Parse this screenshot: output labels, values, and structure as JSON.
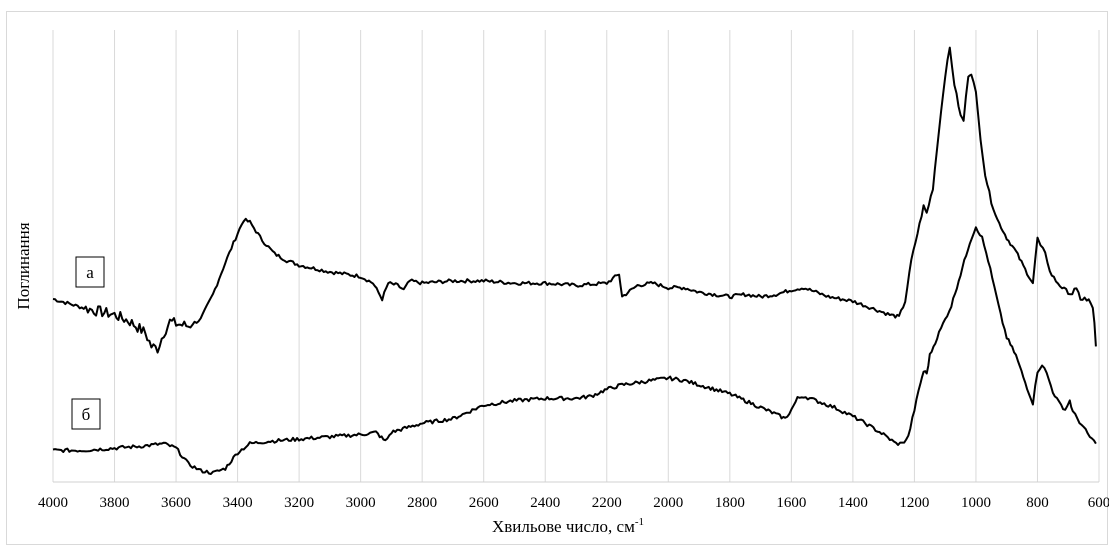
{
  "chart_data": {
    "type": "line",
    "title": "",
    "xlabel_main": "Хвильове число, см",
    "xlabel_sup": "-1",
    "ylabel": "Поглинання",
    "xlim": [
      4000,
      600
    ],
    "x_reversed": true,
    "ylim": [
      0,
      1
    ],
    "x_ticks": [
      4000,
      3800,
      3600,
      3400,
      3200,
      3000,
      2800,
      2600,
      2400,
      2200,
      2000,
      1800,
      1600,
      1400,
      1200,
      1000,
      800,
      600
    ],
    "y_ticks_shown": false,
    "grid": "vertical",
    "series": [
      {
        "name": "а",
        "points": [
          [
            4000,
            0.405
          ],
          [
            3900,
            0.385
          ],
          [
            3800,
            0.37
          ],
          [
            3750,
            0.355
          ],
          [
            3700,
            0.33
          ],
          [
            3680,
            0.3
          ],
          [
            3660,
            0.295
          ],
          [
            3640,
            0.33
          ],
          [
            3620,
            0.355
          ],
          [
            3600,
            0.35
          ],
          [
            3560,
            0.345
          ],
          [
            3520,
            0.36
          ],
          [
            3480,
            0.415
          ],
          [
            3440,
            0.485
          ],
          [
            3400,
            0.55
          ],
          [
            3380,
            0.58
          ],
          [
            3360,
            0.575
          ],
          [
            3320,
            0.535
          ],
          [
            3280,
            0.505
          ],
          [
            3240,
            0.49
          ],
          [
            3200,
            0.48
          ],
          [
            3100,
            0.465
          ],
          [
            3000,
            0.455
          ],
          [
            2960,
            0.44
          ],
          [
            2930,
            0.405
          ],
          [
            2910,
            0.44
          ],
          [
            2880,
            0.435
          ],
          [
            2860,
            0.425
          ],
          [
            2840,
            0.445
          ],
          [
            2800,
            0.44
          ],
          [
            2700,
            0.445
          ],
          [
            2600,
            0.445
          ],
          [
            2500,
            0.44
          ],
          [
            2400,
            0.44
          ],
          [
            2300,
            0.435
          ],
          [
            2200,
            0.44
          ],
          [
            2160,
            0.46
          ],
          [
            2150,
            0.41
          ],
          [
            2100,
            0.435
          ],
          [
            2050,
            0.44
          ],
          [
            2000,
            0.43
          ],
          [
            1950,
            0.43
          ],
          [
            1900,
            0.42
          ],
          [
            1850,
            0.415
          ],
          [
            1800,
            0.41
          ],
          [
            1750,
            0.415
          ],
          [
            1700,
            0.41
          ],
          [
            1650,
            0.415
          ],
          [
            1600,
            0.425
          ],
          [
            1560,
            0.43
          ],
          [
            1520,
            0.42
          ],
          [
            1480,
            0.41
          ],
          [
            1440,
            0.405
          ],
          [
            1400,
            0.4
          ],
          [
            1360,
            0.39
          ],
          [
            1320,
            0.38
          ],
          [
            1280,
            0.37
          ],
          [
            1250,
            0.365
          ],
          [
            1230,
            0.4
          ],
          [
            1210,
            0.49
          ],
          [
            1190,
            0.55
          ],
          [
            1170,
            0.61
          ],
          [
            1160,
            0.595
          ],
          [
            1140,
            0.65
          ],
          [
            1120,
            0.78
          ],
          [
            1100,
            0.9
          ],
          [
            1085,
            0.96
          ],
          [
            1070,
            0.88
          ],
          [
            1050,
            0.81
          ],
          [
            1040,
            0.8
          ],
          [
            1025,
            0.9
          ],
          [
            1015,
            0.905
          ],
          [
            1000,
            0.86
          ],
          [
            985,
            0.76
          ],
          [
            970,
            0.68
          ],
          [
            950,
            0.62
          ],
          [
            930,
            0.58
          ],
          [
            900,
            0.54
          ],
          [
            870,
            0.51
          ],
          [
            840,
            0.47
          ],
          [
            815,
            0.44
          ],
          [
            800,
            0.54
          ],
          [
            790,
            0.52
          ],
          [
            775,
            0.51
          ],
          [
            760,
            0.465
          ],
          [
            740,
            0.445
          ],
          [
            720,
            0.43
          ],
          [
            700,
            0.42
          ],
          [
            680,
            0.42
          ],
          [
            660,
            0.41
          ],
          [
            640,
            0.4
          ],
          [
            620,
            0.39
          ],
          [
            610,
            0.3
          ]
        ]
      },
      {
        "name": "б",
        "points": [
          [
            4000,
            0.07
          ],
          [
            3900,
            0.07
          ],
          [
            3800,
            0.075
          ],
          [
            3700,
            0.08
          ],
          [
            3640,
            0.085
          ],
          [
            3600,
            0.075
          ],
          [
            3560,
            0.04
          ],
          [
            3520,
            0.025
          ],
          [
            3480,
            0.02
          ],
          [
            3440,
            0.03
          ],
          [
            3400,
            0.065
          ],
          [
            3360,
            0.085
          ],
          [
            3300,
            0.09
          ],
          [
            3200,
            0.095
          ],
          [
            3100,
            0.1
          ],
          [
            3000,
            0.105
          ],
          [
            2950,
            0.11
          ],
          [
            2920,
            0.09
          ],
          [
            2900,
            0.11
          ],
          [
            2850,
            0.12
          ],
          [
            2800,
            0.13
          ],
          [
            2700,
            0.14
          ],
          [
            2650,
            0.155
          ],
          [
            2600,
            0.17
          ],
          [
            2500,
            0.18
          ],
          [
            2400,
            0.185
          ],
          [
            2300,
            0.185
          ],
          [
            2250,
            0.19
          ],
          [
            2200,
            0.205
          ],
          [
            2150,
            0.215
          ],
          [
            2100,
            0.22
          ],
          [
            2050,
            0.225
          ],
          [
            2000,
            0.23
          ],
          [
            1950,
            0.225
          ],
          [
            1900,
            0.215
          ],
          [
            1850,
            0.205
          ],
          [
            1800,
            0.195
          ],
          [
            1750,
            0.18
          ],
          [
            1700,
            0.165
          ],
          [
            1650,
            0.15
          ],
          [
            1620,
            0.14
          ],
          [
            1600,
            0.16
          ],
          [
            1580,
            0.185
          ],
          [
            1560,
            0.19
          ],
          [
            1520,
            0.18
          ],
          [
            1460,
            0.165
          ],
          [
            1400,
            0.145
          ],
          [
            1360,
            0.13
          ],
          [
            1300,
            0.105
          ],
          [
            1260,
            0.085
          ],
          [
            1240,
            0.085
          ],
          [
            1220,
            0.1
          ],
          [
            1200,
            0.16
          ],
          [
            1180,
            0.22
          ],
          [
            1170,
            0.245
          ],
          [
            1160,
            0.24
          ],
          [
            1150,
            0.28
          ],
          [
            1120,
            0.33
          ],
          [
            1080,
            0.39
          ],
          [
            1050,
            0.46
          ],
          [
            1020,
            0.53
          ],
          [
            1000,
            0.565
          ],
          [
            980,
            0.54
          ],
          [
            960,
            0.49
          ],
          [
            940,
            0.43
          ],
          [
            920,
            0.37
          ],
          [
            900,
            0.32
          ],
          [
            870,
            0.28
          ],
          [
            840,
            0.22
          ],
          [
            815,
            0.175
          ],
          [
            800,
            0.245
          ],
          [
            785,
            0.26
          ],
          [
            770,
            0.24
          ],
          [
            750,
            0.2
          ],
          [
            730,
            0.175
          ],
          [
            710,
            0.16
          ],
          [
            695,
            0.18
          ],
          [
            685,
            0.155
          ],
          [
            670,
            0.14
          ],
          [
            650,
            0.12
          ],
          [
            630,
            0.1
          ],
          [
            610,
            0.085
          ]
        ]
      }
    ],
    "labels": {
      "a": "а",
      "b": "б"
    }
  }
}
